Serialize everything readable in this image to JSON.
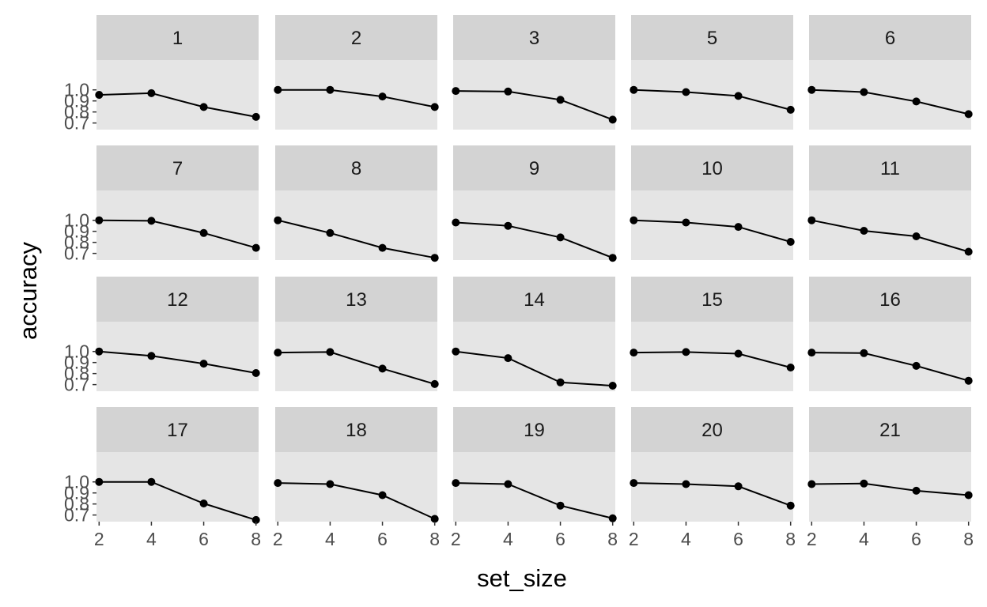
{
  "chart_data": {
    "type": "line",
    "facet_by": "subject",
    "xlabel": "set_size",
    "ylabel": "accuracy",
    "x": [
      2,
      4,
      6,
      8
    ],
    "xticks": [
      2,
      4,
      6,
      8
    ],
    "yticks": [
      0.7,
      0.8,
      0.9,
      1.0
    ],
    "ytick_labels": [
      "0.7",
      "0.8",
      "0.9",
      "1.0"
    ],
    "xlim": [
      1.9,
      8.1
    ],
    "ylim": [
      0.64,
      1.27
    ],
    "grid": false,
    "series_color": "#000000",
    "panels": [
      {
        "label": "1",
        "values": [
          0.955,
          0.97,
          0.845,
          0.755
        ]
      },
      {
        "label": "2",
        "values": [
          1.0,
          1.0,
          0.94,
          0.845
        ]
      },
      {
        "label": "3",
        "values": [
          0.99,
          0.985,
          0.91,
          0.73
        ]
      },
      {
        "label": "5",
        "values": [
          1.0,
          0.98,
          0.945,
          0.82
        ]
      },
      {
        "label": "6",
        "values": [
          1.0,
          0.98,
          0.895,
          0.78
        ]
      },
      {
        "label": "7",
        "values": [
          1.0,
          0.995,
          0.885,
          0.75
        ]
      },
      {
        "label": "8",
        "values": [
          1.0,
          0.885,
          0.75,
          0.66
        ]
      },
      {
        "label": "9",
        "values": [
          0.98,
          0.95,
          0.845,
          0.66
        ]
      },
      {
        "label": "10",
        "values": [
          1.0,
          0.98,
          0.94,
          0.805
        ]
      },
      {
        "label": "11",
        "values": [
          1.0,
          0.905,
          0.855,
          0.715
        ]
      },
      {
        "label": "12",
        "values": [
          1.0,
          0.96,
          0.89,
          0.805
        ]
      },
      {
        "label": "13",
        "values": [
          0.99,
          0.995,
          0.845,
          0.705
        ]
      },
      {
        "label": "14",
        "values": [
          1.0,
          0.94,
          0.72,
          0.69
        ]
      },
      {
        "label": "15",
        "values": [
          0.99,
          0.995,
          0.98,
          0.855
        ]
      },
      {
        "label": "16",
        "values": [
          0.99,
          0.985,
          0.87,
          0.735
        ]
      },
      {
        "label": "17",
        "values": [
          1.0,
          1.0,
          0.805,
          0.655
        ]
      },
      {
        "label": "18",
        "values": [
          0.99,
          0.98,
          0.88,
          0.665
        ]
      },
      {
        "label": "19",
        "values": [
          0.99,
          0.98,
          0.785,
          0.67
        ]
      },
      {
        "label": "20",
        "values": [
          0.99,
          0.98,
          0.96,
          0.785
        ]
      },
      {
        "label": "21",
        "values": [
          0.98,
          0.985,
          0.92,
          0.88
        ]
      }
    ]
  },
  "colors": {
    "panel_background": "#e5e5e5",
    "strip_background": "#d3d3d3",
    "strip_text": "#1a1a1a",
    "tick_text": "#4d4d4d",
    "tick_mark": "#333333",
    "line": "#000000",
    "point": "#000000"
  }
}
